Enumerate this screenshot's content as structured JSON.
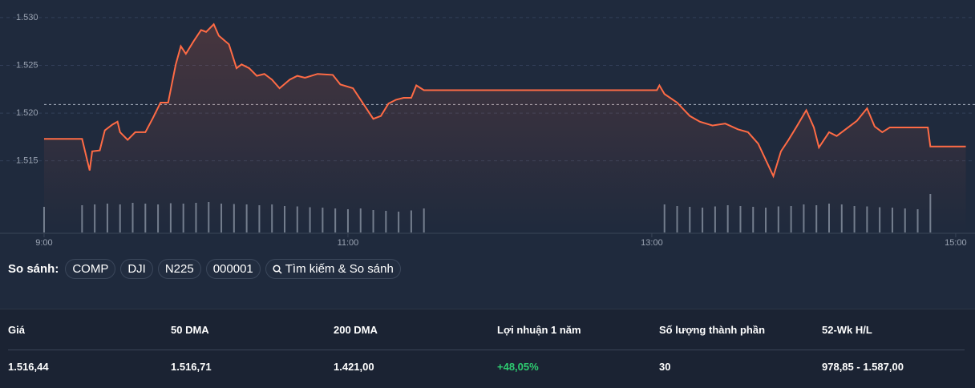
{
  "chart_data": {
    "type": "line",
    "xlim": [
      537,
      905
    ],
    "ylim": [
      1507,
      1531
    ],
    "y2lim": [
      0,
      100
    ],
    "xticks": [
      {
        "value": 540,
        "label": "9:00"
      },
      {
        "value": 660,
        "label": "11:00"
      },
      {
        "value": 780,
        "label": "13:00"
      },
      {
        "value": 900,
        "label": "15:00"
      }
    ],
    "yticks": [
      {
        "value": 1515,
        "label": "1.515"
      },
      {
        "value": 1520,
        "label": "1.520"
      },
      {
        "value": 1525,
        "label": "1.525"
      },
      {
        "value": 1530,
        "label": "1.530"
      }
    ],
    "grid": true,
    "reference_line": 1520.9,
    "series": [
      {
        "color": "#ff6b45",
        "x": [
          540,
          555,
          558,
          559,
          562,
          564,
          567,
          569,
          570,
          573,
          576,
          580,
          583,
          586,
          589,
          592,
          594,
          596,
          599,
          602,
          604,
          607,
          609,
          613,
          616,
          618,
          621,
          624,
          627,
          630,
          633,
          637,
          640,
          643,
          648,
          654,
          657,
          662,
          666,
          670,
          673,
          676,
          679,
          682,
          685,
          687,
          690,
          782,
          783,
          785,
          790,
          795,
          799,
          804,
          809,
          814,
          818,
          822,
          825,
          828,
          831,
          834,
          837,
          841,
          844,
          846,
          850,
          853,
          858,
          861,
          865,
          868,
          871,
          874,
          889,
          890,
          904
        ],
        "values": [
          1517.3,
          1517.3,
          1514.0,
          1516.0,
          1516.1,
          1518.2,
          1518.8,
          1519.1,
          1518.0,
          1517.2,
          1518.0,
          1518.0,
          1519.5,
          1521.1,
          1521.1,
          1525.1,
          1527.0,
          1526.2,
          1527.5,
          1528.7,
          1528.5,
          1529.3,
          1528.1,
          1527.2,
          1524.7,
          1525.1,
          1524.7,
          1523.9,
          1524.1,
          1523.5,
          1522.6,
          1523.5,
          1523.9,
          1523.7,
          1524.1,
          1524.0,
          1523.0,
          1522.6,
          1521.0,
          1519.4,
          1519.7,
          1521.0,
          1521.4,
          1521.6,
          1521.6,
          1522.9,
          1522.4,
          1522.4,
          1522.9,
          1522.0,
          1521.1,
          1519.7,
          1519.1,
          1518.7,
          1518.9,
          1518.3,
          1518.0,
          1516.8,
          1515.1,
          1513.4,
          1516.0,
          1517.2,
          1518.5,
          1520.3,
          1518.5,
          1516.4,
          1518.0,
          1517.6,
          1518.6,
          1519.2,
          1520.5,
          1518.6,
          1518.0,
          1518.5,
          1518.5,
          1516.5,
          1516.5
        ]
      },
      {
        "type": "bar",
        "axis": "y2",
        "color": "#8a93a3",
        "x": [
          540,
          555,
          560,
          565,
          570,
          575,
          580,
          585,
          590,
          595,
          600,
          605,
          610,
          615,
          620,
          625,
          630,
          635,
          640,
          645,
          650,
          655,
          660,
          665,
          670,
          675,
          680,
          685,
          690,
          785,
          790,
          795,
          800,
          805,
          810,
          815,
          820,
          825,
          830,
          835,
          840,
          845,
          850,
          855,
          860,
          865,
          870,
          875,
          880,
          885,
          890
        ],
        "values": [
          64,
          68,
          70,
          72,
          70,
          74,
          72,
          70,
          73,
          72,
          74,
          76,
          72,
          71,
          70,
          68,
          70,
          66,
          65,
          63,
          62,
          60,
          58,
          60,
          56,
          54,
          52,
          55,
          60,
          70,
          66,
          64,
          62,
          65,
          68,
          66,
          64,
          62,
          65,
          66,
          70,
          68,
          72,
          70,
          66,
          65,
          63,
          62,
          60,
          58,
          96
        ]
      }
    ]
  },
  "compare": {
    "label": "So sánh:",
    "items": [
      "COMP",
      "DJI",
      "N225",
      "000001"
    ],
    "search": "Tìm kiếm & So sánh"
  },
  "stats": {
    "headers": [
      "Giá",
      "50 DMA",
      "200 DMA",
      "Lợi nhuận 1 năm",
      "Số lượng thành phần",
      "52-Wk H/L"
    ],
    "values": [
      "1.516,44",
      "1.516,71",
      "1.421,00",
      "+48,05%",
      "30",
      "978,85 - 1.587,00"
    ]
  }
}
